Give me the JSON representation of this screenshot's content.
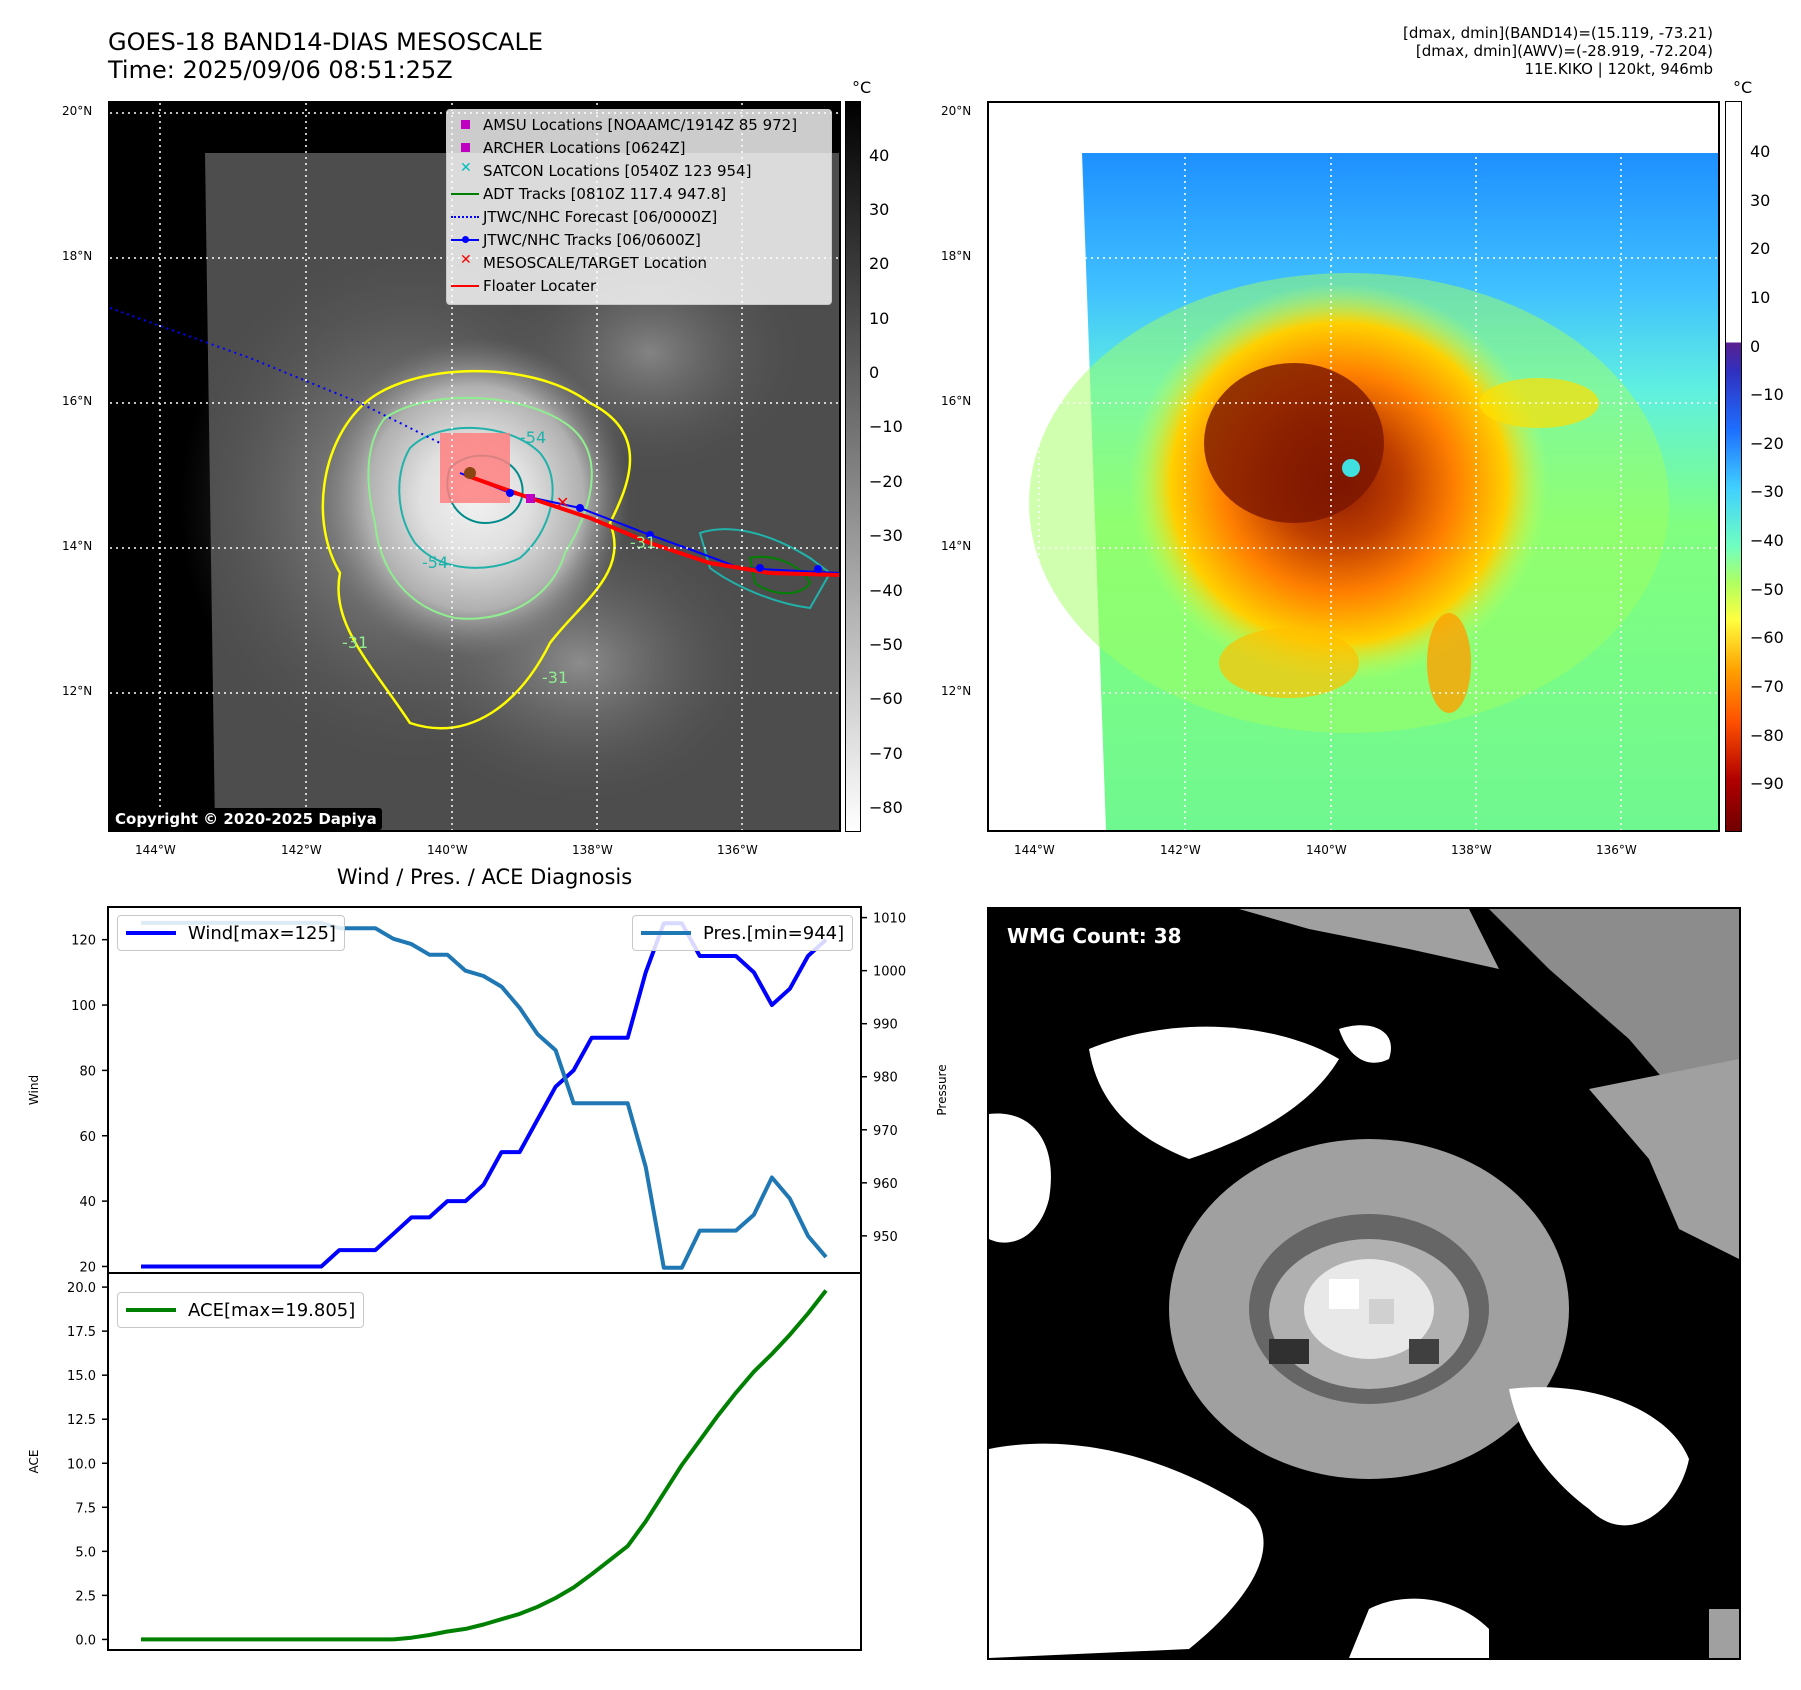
{
  "header": {
    "title_line1": "GOES-18 BAND14-DIAS MESOSCALE",
    "title_line2": "Time: 2025/09/06 08:51:25Z",
    "info_line1": "[dmax, dmin](BAND14)=(15.119, -73.21)",
    "info_line2": "[dmax, dmin](AWV)=(-28.919, -72.204)",
    "info_line3": "11E.KIKO | 120kt, 946mb"
  },
  "map_left": {
    "lat_labels": [
      "20°N",
      "18°N",
      "16°N",
      "14°N",
      "12°N"
    ],
    "lon_labels": [
      "144°W",
      "142°W",
      "140°W",
      "138°W",
      "136°W"
    ],
    "colorbar_unit": "°C",
    "colorbar_ticks": [
      "40",
      "30",
      "20",
      "10",
      "0",
      "−10",
      "−20",
      "−30",
      "−40",
      "−50",
      "−60",
      "−70",
      "−80"
    ],
    "copyright": "Copyright © 2020-2025 Dapiya",
    "legend": [
      {
        "label": "AMSU Locations [NOAAMC/1914Z 85 972]",
        "color": "#c000c0",
        "symbol": "square-icon"
      },
      {
        "label": "ARCHER Locations [0624Z]",
        "color": "#c000c0",
        "symbol": "square-icon"
      },
      {
        "label": "SATCON Locations [0540Z 123 954]",
        "color": "#00c0c0",
        "symbol": "x-icon"
      },
      {
        "label": "ADT Tracks [0810Z 117.4 947.8]",
        "color": "#008000",
        "symbol": "line-icon"
      },
      {
        "label": "JTWC/NHC Forecast [06/0000Z]",
        "color": "#0000ff",
        "symbol": "dotted-line-icon"
      },
      {
        "label": "JTWC/NHC Tracks [06/0600Z]",
        "color": "#0000ff",
        "symbol": "line-dot-icon"
      },
      {
        "label": "MESOSCALE/TARGET Location",
        "color": "#ff0000",
        "symbol": "x-icon"
      },
      {
        "label": "Floater Locater",
        "color": "#ff0000",
        "symbol": "line-icon"
      }
    ],
    "contour_labels": [
      "-54",
      "-54",
      "-31",
      "-31",
      "-31"
    ]
  },
  "map_right": {
    "lat_labels": [
      "20°N",
      "18°N",
      "16°N",
      "14°N",
      "12°N"
    ],
    "lon_labels": [
      "144°W",
      "142°W",
      "140°W",
      "138°W",
      "136°W"
    ],
    "colorbar_unit": "°C",
    "colorbar_ticks": [
      "40",
      "30",
      "20",
      "10",
      "0",
      "−10",
      "−20",
      "−30",
      "−40",
      "−50",
      "−60",
      "−70",
      "−80",
      "−90"
    ]
  },
  "wmg": {
    "label": "WMG Count: 38"
  },
  "chart_data": [
    {
      "type": "line",
      "title": "Wind / Pres. / ACE Diagnosis",
      "ylabel": "Wind",
      "ylim": [
        18,
        130
      ],
      "yticks": [
        20,
        40,
        60,
        80,
        100,
        120
      ],
      "series": [
        {
          "name": "Wind[max=125]",
          "color": "#0000ff",
          "values": [
            20,
            20,
            20,
            20,
            20,
            20,
            20,
            20,
            20,
            20,
            20,
            25,
            25,
            25,
            30,
            35,
            35,
            40,
            40,
            45,
            55,
            55,
            65,
            75,
            80,
            90,
            90,
            90,
            110,
            125,
            125,
            115,
            115,
            115,
            110,
            100,
            105,
            115,
            120
          ]
        }
      ],
      "secondary_ylabel": "Pressure",
      "secondary_ylim": [
        943,
        1012
      ],
      "secondary_yticks": [
        950,
        960,
        970,
        980,
        990,
        1000,
        1010
      ],
      "secondary_series": [
        {
          "name": "Pres.[min=944]",
          "color": "#1f77b4",
          "values": [
            1009,
            1009,
            1009,
            1009,
            1009,
            1009,
            1009,
            1009,
            1009,
            1009,
            1009,
            1008,
            1008,
            1008,
            1006,
            1005,
            1003,
            1003,
            1000,
            999,
            997,
            993,
            988,
            985,
            975,
            975,
            975,
            975,
            963,
            944,
            944,
            951,
            951,
            951,
            954,
            961,
            957,
            950,
            946
          ]
        }
      ]
    },
    {
      "type": "line",
      "ylabel": "ACE",
      "ylim": [
        -0.6,
        20.8
      ],
      "yticks": [
        0.0,
        2.5,
        5.0,
        7.5,
        10.0,
        12.5,
        15.0,
        17.5,
        20.0
      ],
      "ytick_labels": [
        "0.0",
        "2.5",
        "5.0",
        "7.5",
        "10.0",
        "12.5",
        "15.0",
        "17.5",
        "20.0"
      ],
      "series": [
        {
          "name": "ACE[max=19.805]",
          "color": "#008000",
          "values": [
            0,
            0,
            0,
            0,
            0,
            0,
            0,
            0,
            0,
            0,
            0,
            0,
            0,
            0,
            0,
            0.1,
            0.25,
            0.45,
            0.6,
            0.85,
            1.15,
            1.45,
            1.85,
            2.35,
            2.95,
            3.7,
            4.5,
            5.3,
            6.7,
            8.3,
            9.9,
            11.3,
            12.7,
            14.0,
            15.2,
            16.2,
            17.3,
            18.5,
            19.805
          ]
        }
      ]
    }
  ]
}
